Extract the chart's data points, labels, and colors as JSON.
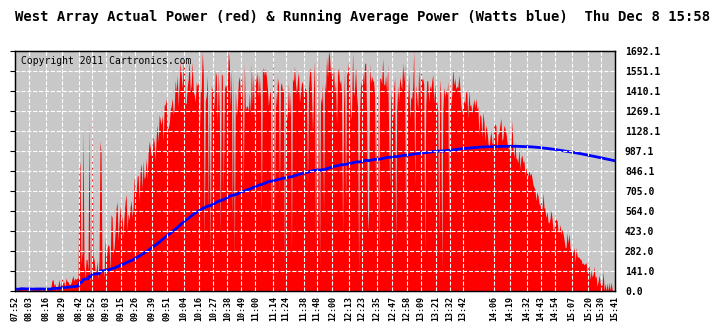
{
  "title": "West Array Actual Power (red) & Running Average Power (Watts blue)  Thu Dec 8 15:58",
  "copyright": "Copyright 2011 Cartronics.com",
  "ylabel_right": [
    "1692.1",
    "1551.1",
    "1410.1",
    "1269.1",
    "1128.1",
    "987.1",
    "846.1",
    "705.0",
    "564.0",
    "423.0",
    "282.0",
    "141.0",
    "0.0"
  ],
  "ymax": 1692.1,
  "ymin": 0.0,
  "yticks": [
    1692.1,
    1551.1,
    1410.1,
    1269.1,
    1128.1,
    987.1,
    846.1,
    705.0,
    564.0,
    423.0,
    282.0,
    141.0,
    0.0
  ],
  "x_labels": [
    "07:52",
    "08:03",
    "08:16",
    "08:29",
    "08:42",
    "08:52",
    "09:03",
    "09:15",
    "09:26",
    "09:39",
    "09:51",
    "10:04",
    "10:16",
    "10:27",
    "10:38",
    "10:49",
    "11:00",
    "11:14",
    "11:24",
    "11:38",
    "11:48",
    "12:00",
    "12:13",
    "12:23",
    "12:35",
    "12:47",
    "12:58",
    "13:09",
    "13:21",
    "13:32",
    "13:42",
    "14:06",
    "14:19",
    "14:32",
    "14:43",
    "14:54",
    "15:07",
    "15:20",
    "15:30",
    "15:41"
  ],
  "background_color": "#ffffff",
  "plot_bg_color": "#c8c8c8",
  "bar_color": "#ff0000",
  "line_color": "#0000ff",
  "grid_color": "#ffffff",
  "title_fontsize": 10,
  "copyright_fontsize": 7
}
